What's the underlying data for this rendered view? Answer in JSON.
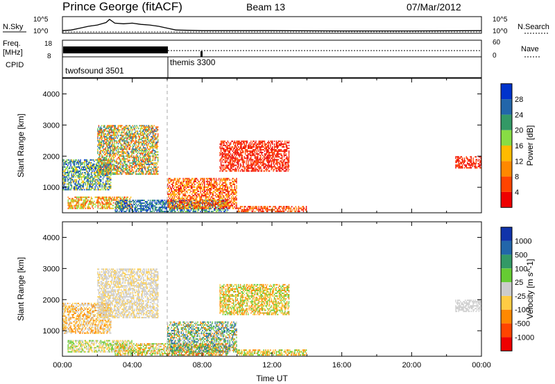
{
  "header": {
    "station": "Prince George (fitACF)",
    "beam": "Beam 13",
    "date": "07/Mar/2012"
  },
  "status_panel": {
    "nsky_label": "N.Sky",
    "nsearch_label": "N.Search",
    "nsky_ticks": [
      "10^5",
      "10^0"
    ],
    "nsky_right_ticks": [
      "10^5",
      "10^0"
    ],
    "freq_label_1": "Freq.",
    "freq_label_2": "[MHz]",
    "freq_ticks": [
      "18",
      "8"
    ],
    "nave_label": "Nave",
    "nave_ticks": [
      "60",
      "0"
    ],
    "cpid_label": "CPID",
    "cpid_1": "twofsound 3501",
    "cpid_2": "themis 3300",
    "nsky_series": [
      [
        0,
        0.1
      ],
      [
        0.5,
        0.15
      ],
      [
        1,
        0.3
      ],
      [
        1.5,
        0.45
      ],
      [
        2,
        0.55
      ],
      [
        2.5,
        0.75
      ],
      [
        2.7,
        1.0
      ],
      [
        3,
        0.7
      ],
      [
        3.5,
        0.65
      ],
      [
        4,
        0.7
      ],
      [
        4.5,
        0.6
      ],
      [
        5,
        0.55
      ],
      [
        5.5,
        0.45
      ],
      [
        6,
        0.3
      ],
      [
        6.5,
        0.15
      ],
      [
        8,
        0.1
      ],
      [
        12,
        0.1
      ],
      [
        16,
        0.08
      ],
      [
        20,
        0.08
      ],
      [
        24,
        0.1
      ]
    ]
  },
  "chart_data": [
    {
      "type": "heatmap",
      "title": "",
      "xlabel": "",
      "ylabel": "Slant Range [km]",
      "xlim": [
        0,
        24
      ],
      "ylim": [
        180,
        4500
      ],
      "yticks": [
        "1000",
        "2000",
        "3000",
        "4000"
      ],
      "colorbar_label": "Power [dB]",
      "colorbar_ticks": [
        "28",
        "24",
        "20",
        "16",
        "12",
        "8",
        "4"
      ],
      "colorbar_colors": [
        "#ee0000",
        "#ff4400",
        "#ff8800",
        "#ffbb00",
        "#88dd44",
        "#339966",
        "#2266aa",
        "#0033cc"
      ],
      "data_regions": [
        {
          "x": [
            0.0,
            2.8
          ],
          "y": [
            900,
            1900
          ],
          "levels": [
            3,
            4,
            5,
            6,
            7
          ]
        },
        {
          "x": [
            2.0,
            5.5
          ],
          "y": [
            1400,
            3000
          ],
          "levels": [
            1,
            2,
            3,
            4,
            5,
            6
          ]
        },
        {
          "x": [
            0.3,
            4.0
          ],
          "y": [
            300,
            700
          ],
          "levels": [
            1,
            2,
            3,
            4
          ]
        },
        {
          "x": [
            3.0,
            6.0
          ],
          "y": [
            200,
            600
          ],
          "levels": [
            5,
            6,
            7
          ]
        },
        {
          "x": [
            6.0,
            9.5
          ],
          "y": [
            200,
            600
          ],
          "levels": [
            4,
            5,
            6,
            7
          ]
        },
        {
          "x": [
            6.0,
            10.0
          ],
          "y": [
            300,
            1300
          ],
          "levels": [
            0,
            1,
            2,
            3
          ]
        },
        {
          "x": [
            10.0,
            14.0
          ],
          "y": [
            200,
            400
          ],
          "levels": [
            0,
            1,
            2
          ]
        },
        {
          "x": [
            9.0,
            13.0
          ],
          "y": [
            1500,
            2500
          ],
          "levels": [
            0,
            1
          ]
        },
        {
          "x": [
            22.5,
            24.0
          ],
          "y": [
            1600,
            2000
          ],
          "levels": [
            0,
            1
          ]
        }
      ]
    },
    {
      "type": "heatmap",
      "title": "",
      "xlabel": "Time UT",
      "ylabel": "Slant Range [km]",
      "xlim": [
        0,
        24
      ],
      "ylim": [
        180,
        4500
      ],
      "xticks": [
        "00:00",
        "04:00",
        "08:00",
        "12:00",
        "16:00",
        "20:00",
        "00:00"
      ],
      "yticks": [
        "1000",
        "2000",
        "3000",
        "4000"
      ],
      "colorbar_label": "Velocity [m s^-1]",
      "colorbar_ticks": [
        "1000",
        "500",
        "100",
        "25",
        "-25",
        "-100",
        "-500",
        "-1000"
      ],
      "colorbar_colors": [
        "#ee0000",
        "#ff4400",
        "#ff8800",
        "#ffcc44",
        "#cccccc",
        "#66cc33",
        "#339966",
        "#2266aa",
        "#1133aa"
      ],
      "data_regions": [
        {
          "x": [
            0.0,
            2.8
          ],
          "y": [
            900,
            1900
          ],
          "levels": [
            2,
            3,
            4
          ]
        },
        {
          "x": [
            2.0,
            5.5
          ],
          "y": [
            1400,
            3000
          ],
          "levels": [
            4,
            4,
            3
          ]
        },
        {
          "x": [
            0.3,
            4.0
          ],
          "y": [
            300,
            700
          ],
          "levels": [
            4,
            5,
            3
          ]
        },
        {
          "x": [
            3.0,
            6.0
          ],
          "y": [
            200,
            600
          ],
          "levels": [
            2,
            3,
            4,
            5
          ]
        },
        {
          "x": [
            6.0,
            9.5
          ],
          "y": [
            200,
            600
          ],
          "levels": [
            1,
            2,
            3,
            5,
            6
          ]
        },
        {
          "x": [
            6.0,
            10.0
          ],
          "y": [
            300,
            1300
          ],
          "levels": [
            2,
            4,
            5,
            6,
            7
          ]
        },
        {
          "x": [
            10.0,
            14.0
          ],
          "y": [
            200,
            400
          ],
          "levels": [
            2,
            3,
            5
          ]
        },
        {
          "x": [
            9.0,
            13.0
          ],
          "y": [
            1500,
            2500
          ],
          "levels": [
            2,
            3,
            5
          ]
        },
        {
          "x": [
            22.5,
            24.0
          ],
          "y": [
            1600,
            2000
          ],
          "levels": [
            4,
            4
          ]
        }
      ]
    }
  ]
}
